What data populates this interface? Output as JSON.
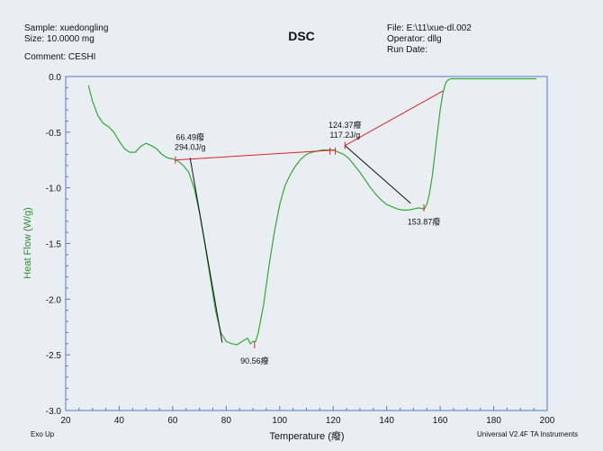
{
  "header": {
    "sample": "Sample: xuedongling",
    "size": "Size:  10.0000 mg",
    "comment": "Comment: CESHI",
    "file": "File: E:\\11\\xue-dl.002",
    "operator": "Operator: dllg",
    "run_date": "Run Date:"
  },
  "footer": {
    "exo": "Exo Up",
    "instrument": "Universal V2.4F TA Instruments"
  },
  "colors": {
    "background": "#e9eef3",
    "axis": "#5577cc",
    "curve": "#33aa33",
    "baseline": "#dd2222",
    "tangent": "#111111",
    "ylabel": "#2f8f2f"
  },
  "chart_data": {
    "type": "line",
    "title": "DSC",
    "xlabel": "Temperature (癈)",
    "ylabel": "Heat Flow (W/g)",
    "xlim": [
      20,
      200
    ],
    "ylim": [
      -3.0,
      0.0
    ],
    "xticks": [
      20,
      40,
      60,
      80,
      100,
      120,
      140,
      160,
      180,
      200
    ],
    "yticks": [
      0.0,
      -0.5,
      -1.0,
      -1.5,
      -2.0,
      -2.5,
      -3.0
    ],
    "xtick_labels": [
      "20",
      "40",
      "60",
      "80",
      "100",
      "120",
      "140",
      "160",
      "180",
      "200"
    ],
    "ytick_labels": [
      "0.0",
      "-0.5",
      "-1.0",
      "-1.5",
      "-2.0",
      "-2.5",
      "-3.0"
    ],
    "series": [
      {
        "x": [
          28.5,
          30,
          32,
          34,
          36,
          38,
          40,
          42,
          44,
          46,
          48,
          50,
          52,
          54,
          56,
          58,
          60,
          62,
          64,
          66,
          68,
          70,
          72,
          74,
          76,
          78,
          80,
          82,
          84,
          86,
          88,
          89,
          90,
          91,
          92,
          94,
          96,
          98,
          100,
          102,
          104,
          106,
          108,
          110,
          112,
          114,
          116,
          118,
          120,
          122,
          124,
          126,
          128,
          130,
          132,
          134,
          136,
          138,
          140,
          142,
          144,
          146,
          148,
          150,
          152,
          154,
          155,
          156,
          157,
          158,
          159,
          160,
          161,
          162,
          163,
          164,
          166,
          170,
          175,
          180,
          185,
          190,
          196
        ],
        "y": [
          -0.08,
          -0.22,
          -0.35,
          -0.42,
          -0.45,
          -0.5,
          -0.58,
          -0.65,
          -0.68,
          -0.68,
          -0.63,
          -0.6,
          -0.62,
          -0.65,
          -0.7,
          -0.73,
          -0.74,
          -0.76,
          -0.8,
          -0.86,
          -1.0,
          -1.22,
          -1.5,
          -1.8,
          -2.1,
          -2.3,
          -2.38,
          -2.4,
          -2.41,
          -2.38,
          -2.35,
          -2.4,
          -2.38,
          -2.38,
          -2.3,
          -2.05,
          -1.7,
          -1.4,
          -1.15,
          -0.98,
          -0.88,
          -0.8,
          -0.74,
          -0.7,
          -0.68,
          -0.67,
          -0.66,
          -0.66,
          -0.66,
          -0.68,
          -0.7,
          -0.74,
          -0.8,
          -0.86,
          -0.93,
          -1.0,
          -1.06,
          -1.11,
          -1.15,
          -1.17,
          -1.19,
          -1.2,
          -1.2,
          -1.19,
          -1.18,
          -1.19,
          -1.15,
          -1.05,
          -0.9,
          -0.7,
          -0.5,
          -0.3,
          -0.15,
          -0.06,
          -0.03,
          -0.02,
          -0.02,
          -0.02,
          -0.02,
          -0.02,
          -0.02,
          -0.02,
          -0.02
        ]
      }
    ],
    "baselines": [
      {
        "x1": 61.0,
        "y1": -0.75,
        "x2": 121.0,
        "y2": -0.66
      },
      {
        "x1": 124.4,
        "y1": -0.62,
        "x2": 161.0,
        "y2": -0.13
      }
    ],
    "tangents": [
      {
        "x1": 66.5,
        "y1": -0.73,
        "x2": 78.5,
        "y2": -2.39
      },
      {
        "x1": 124.4,
        "y1": -0.62,
        "x2": 149.0,
        "y2": -1.14
      }
    ],
    "markers": [
      {
        "x": 61.0,
        "y": -0.75
      },
      {
        "x": 118.8,
        "y": -0.67
      },
      {
        "x": 120.8,
        "y": -0.67
      },
      {
        "x": 124.4,
        "y": -0.62
      },
      {
        "x": 90.6,
        "y": -2.41
      },
      {
        "x": 153.9,
        "y": -1.18
      }
    ],
    "annotations": [
      {
        "id": "onset-1-temp",
        "text": "66.49癈",
        "x": 66.5,
        "y": -0.57,
        "anchor": "middle"
      },
      {
        "id": "onset-1-enthalpy",
        "text": "294.0J/g",
        "x": 66.5,
        "y": -0.66,
        "anchor": "middle"
      },
      {
        "id": "peak-1",
        "text": "90.56癈",
        "x": 90.6,
        "y": -2.58,
        "anchor": "middle"
      },
      {
        "id": "onset-2-temp",
        "text": "124.37癈",
        "x": 124.4,
        "y": -0.46,
        "anchor": "middle"
      },
      {
        "id": "onset-2-enthalpy",
        "text": "117.2J/g",
        "x": 124.4,
        "y": -0.55,
        "anchor": "middle"
      },
      {
        "id": "peak-2",
        "text": "153.87癈",
        "x": 153.9,
        "y": -1.33,
        "anchor": "middle"
      }
    ]
  }
}
